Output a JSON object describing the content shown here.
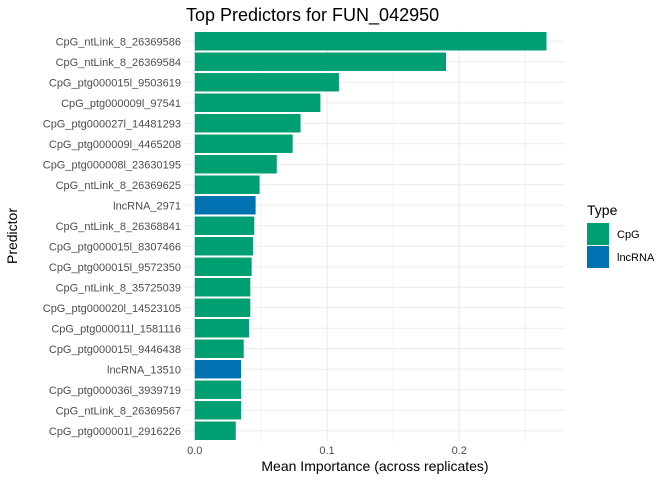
{
  "chart_data": {
    "type": "bar",
    "orientation": "horizontal",
    "title": "Top Predictors for FUN_042950",
    "xlabel": "Mean Importance (across replicates)",
    "ylabel": "Predictor",
    "xlim": [
      -0.0074,
      0.28
    ],
    "xticks": [
      0.0,
      0.1,
      0.2
    ],
    "xtick_labels": [
      "0.0",
      "0.1",
      "0.2"
    ],
    "grid": true,
    "legend": {
      "title": "Type",
      "position": "right",
      "entries": [
        {
          "label": "CpG",
          "color": "#009E73"
        },
        {
          "label": "lncRNA",
          "color": "#0072B2"
        }
      ]
    },
    "categories": [
      "CpG_ntLink_8_26369586",
      "CpG_ntLink_8_26369584",
      "CpG_ptg000015l_9503619",
      "CpG_ptg000009l_97541",
      "CpG_ptg000027l_14481293",
      "CpG_ptg000009l_4465208",
      "CpG_ptg000008l_23630195",
      "CpG_ntLink_8_26369625",
      "lncRNA_2971",
      "CpG_ntLink_8_26368841",
      "CpG_ptg000015l_8307466",
      "CpG_ptg000015l_9572350",
      "CpG_ntLink_8_35725039",
      "CpG_ptg000020l_14523105",
      "CpG_ptg000011l_1581116",
      "CpG_ptg000015l_9446438",
      "lncRNA_13510",
      "CpG_ptg000036l_3939719",
      "CpG_ntLink_8_26369567",
      "CpG_ptg000001l_2916226"
    ],
    "values": [
      0.266,
      0.19,
      0.109,
      0.095,
      0.08,
      0.074,
      0.062,
      0.049,
      0.046,
      0.045,
      0.044,
      0.043,
      0.042,
      0.042,
      0.041,
      0.037,
      0.035,
      0.035,
      0.035,
      0.031
    ],
    "types": [
      "CpG",
      "CpG",
      "CpG",
      "CpG",
      "CpG",
      "CpG",
      "CpG",
      "CpG",
      "lncRNA",
      "CpG",
      "CpG",
      "CpG",
      "CpG",
      "CpG",
      "CpG",
      "CpG",
      "lncRNA",
      "CpG",
      "CpG",
      "CpG"
    ]
  }
}
